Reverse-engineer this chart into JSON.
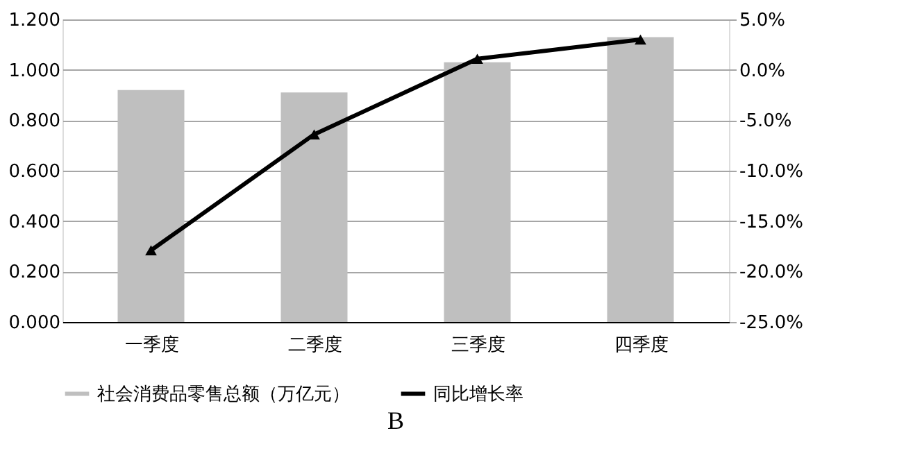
{
  "chart_data": {
    "type": "bar",
    "title": "B",
    "categories": [
      "一季度",
      "二季度",
      "三季度",
      "四季度"
    ],
    "series": [
      {
        "name": "社会消费品零售总额（万亿元）",
        "color": "#bfbfbf",
        "values": [
          0.92,
          0.91,
          1.03,
          1.13
        ]
      },
      {
        "name": "同比增长率",
        "type": "line",
        "axis": "y2",
        "color": "#000000",
        "marker": "triangle",
        "values": [
          -17.9,
          -6.4,
          1.1,
          3.0
        ]
      }
    ],
    "ylim": [
      0,
      1.2
    ],
    "yticks": [
      {
        "value": 0,
        "label": "0.000"
      },
      {
        "value": 0.2,
        "label": "0.200"
      },
      {
        "value": 0.4,
        "label": "0.400"
      },
      {
        "value": 0.6,
        "label": "0.600"
      },
      {
        "value": 0.8,
        "label": "0.800"
      },
      {
        "value": 1.0,
        "label": "1.000"
      },
      {
        "value": 1.2,
        "label": "1.200"
      }
    ],
    "y2lim": [
      -25,
      5
    ],
    "y2ticks": [
      {
        "value": -25,
        "label": "-25.0%"
      },
      {
        "value": -20,
        "label": "-20.0%"
      },
      {
        "value": -15,
        "label": "-15.0%"
      },
      {
        "value": -10,
        "label": "-10.0%"
      },
      {
        "value": -5,
        "label": "-5.0%"
      },
      {
        "value": 0,
        "label": "0.0%"
      },
      {
        "value": 5,
        "label": "5.0%"
      }
    ],
    "grid": "y",
    "legend": "bottom"
  }
}
